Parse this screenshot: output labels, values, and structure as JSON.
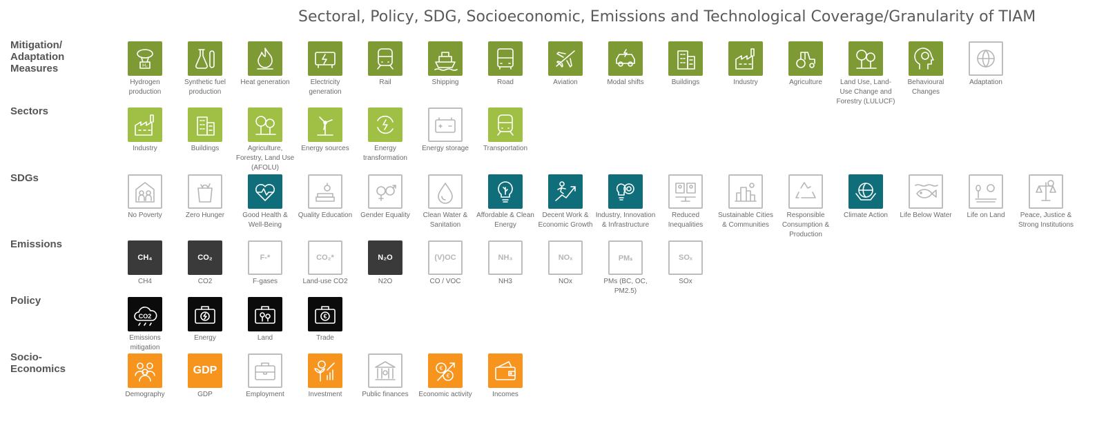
{
  "title": "Sectoral, Policy, SDG, Socioeconomic, Emissions and Technological Coverage/Granularity of TIAM",
  "rows": [
    {
      "label": "Mitigation/\nAdaptation\nMeasures",
      "items": [
        {
          "caption": "Hydrogen production",
          "icon": "hydrogen-icon",
          "style": "olive"
        },
        {
          "caption": "Synthetic fuel production",
          "icon": "flask-icon",
          "style": "olive"
        },
        {
          "caption": "Heat generation",
          "icon": "flame-icon",
          "style": "olive"
        },
        {
          "caption": "Electricity generation",
          "icon": "generator-icon",
          "style": "olive"
        },
        {
          "caption": "Rail",
          "icon": "train-icon",
          "style": "olive"
        },
        {
          "caption": "Shipping",
          "icon": "ship-icon",
          "style": "olive"
        },
        {
          "caption": "Road",
          "icon": "bus-icon",
          "style": "olive"
        },
        {
          "caption": "Aviation",
          "icon": "plane-icon",
          "style": "olive"
        },
        {
          "caption": "Modal shifts",
          "icon": "ev-car-icon",
          "style": "olive"
        },
        {
          "caption": "Buildings",
          "icon": "building-icon",
          "style": "olive"
        },
        {
          "caption": "Industry",
          "icon": "factory-icon",
          "style": "olive"
        },
        {
          "caption": "Agriculture",
          "icon": "tractor-icon",
          "style": "olive"
        },
        {
          "caption": "Land Use, Land-Use Change and Forestry (LULUCF)",
          "icon": "trees-icon",
          "style": "olive"
        },
        {
          "caption": "Behavioural Changes",
          "icon": "head-brain-icon",
          "style": "olive"
        },
        {
          "caption": "Adaptation",
          "icon": "globe-icon",
          "style": "outline"
        }
      ]
    },
    {
      "label": "Sectors",
      "items": [
        {
          "caption": "Industry",
          "icon": "factory-icon",
          "style": "lime"
        },
        {
          "caption": "Buildings",
          "icon": "building-icon",
          "style": "lime"
        },
        {
          "caption": "Agriculture, Forestry, Land Use (AFOLU)",
          "icon": "trees-icon",
          "style": "lime"
        },
        {
          "caption": "Energy sources",
          "icon": "wind-turbine-icon",
          "style": "lime"
        },
        {
          "caption": "Energy transformation",
          "icon": "energy-cycle-icon",
          "style": "lime"
        },
        {
          "caption": "Energy storage",
          "icon": "battery-icon",
          "style": "outline"
        },
        {
          "caption": "Transportation",
          "icon": "train-icon",
          "style": "lime"
        }
      ]
    },
    {
      "label": "SDGs",
      "items": [
        {
          "caption": "No Poverty",
          "icon": "family-icon",
          "style": "outline"
        },
        {
          "caption": "Zero Hunger",
          "icon": "grocery-bag-icon",
          "style": "outline"
        },
        {
          "caption": "Good Health & Well-Being",
          "icon": "heart-pulse-icon",
          "style": "teal"
        },
        {
          "caption": "Quality Education",
          "icon": "books-icon",
          "style": "outline"
        },
        {
          "caption": "Gender Equality",
          "icon": "gender-icon",
          "style": "outline"
        },
        {
          "caption": "Clean Water & Sanitation",
          "icon": "water-drop-icon",
          "style": "outline"
        },
        {
          "caption": "Affordable & Clean Energy",
          "icon": "lightbulb-icon",
          "style": "teal"
        },
        {
          "caption": "Decent Work & Economic Growth",
          "icon": "growth-runner-icon",
          "style": "teal"
        },
        {
          "caption": "Industry, Innovation & Infrastructure",
          "icon": "gear-bulb-icon",
          "style": "teal"
        },
        {
          "caption": "Reduced Inequalities",
          "icon": "people-icon",
          "style": "outline"
        },
        {
          "caption": "Sustainable Cities & Communities",
          "icon": "city-icon",
          "style": "outline"
        },
        {
          "caption": "Responsible Consumption & Production",
          "icon": "recycle-icon",
          "style": "outline"
        },
        {
          "caption": "Climate Action",
          "icon": "globe-hands-icon",
          "style": "teal"
        },
        {
          "caption": "Life Below Water",
          "icon": "fish-icon",
          "style": "outline"
        },
        {
          "caption": "Life on Land",
          "icon": "land-icon",
          "style": "outline"
        },
        {
          "caption": "Peace, Justice & Strong Institutions",
          "icon": "justice-icon",
          "style": "outline"
        }
      ]
    },
    {
      "label": "Emissions",
      "items": [
        {
          "caption": "CH4",
          "icon": "ch4-icon",
          "style": "dark",
          "text": "CH₄"
        },
        {
          "caption": "CO2",
          "icon": "co2-icon",
          "style": "dark",
          "text": "CO₂"
        },
        {
          "caption": "F-gases",
          "icon": "fgas-icon",
          "style": "outline",
          "text": "F-*"
        },
        {
          "caption": "Land-use CO2",
          "icon": "landuse-co2-icon",
          "style": "outline",
          "text": "CO₂*"
        },
        {
          "caption": "N2O",
          "icon": "n2o-icon",
          "style": "dark",
          "text": "N₂O"
        },
        {
          "caption": "CO / VOC",
          "icon": "voc-icon",
          "style": "outline",
          "text": "(V)OC"
        },
        {
          "caption": "NH3",
          "icon": "nh3-icon",
          "style": "outline",
          "text": "NH₃"
        },
        {
          "caption": "NOx",
          "icon": "nox-icon",
          "style": "outline",
          "text": "NOₓ"
        },
        {
          "caption": "PMs (BC, OC, PM2.5)",
          "icon": "pm-icon",
          "style": "outline",
          "text": "PMₛ"
        },
        {
          "caption": "SOx",
          "icon": "sox-icon",
          "style": "outline",
          "text": "SOₓ"
        }
      ]
    },
    {
      "label": "Policy",
      "items": [
        {
          "caption": "Emissions mitigation",
          "icon": "co2-cloud-icon",
          "style": "black"
        },
        {
          "caption": "Energy",
          "icon": "briefcase-energy-icon",
          "style": "black"
        },
        {
          "caption": "Land",
          "icon": "briefcase-land-icon",
          "style": "black"
        },
        {
          "caption": "Trade",
          "icon": "briefcase-euro-icon",
          "style": "black"
        }
      ]
    },
    {
      "label": "Socio-\nEconomics",
      "items": [
        {
          "caption": "Demography",
          "icon": "population-icon",
          "style": "orange"
        },
        {
          "caption": "GDP",
          "icon": "gdp-icon",
          "style": "orange",
          "text": "GDP"
        },
        {
          "caption": "Employment",
          "icon": "briefcase-icon",
          "style": "outline"
        },
        {
          "caption": "Investment",
          "icon": "plant-coins-icon",
          "style": "orange"
        },
        {
          "caption": "Public finances",
          "icon": "bank-icon",
          "style": "outline"
        },
        {
          "caption": "Economic activity",
          "icon": "euro-growth-icon",
          "style": "orange"
        },
        {
          "caption": "Incomes",
          "icon": "wallet-icon",
          "style": "orange"
        }
      ]
    }
  ]
}
